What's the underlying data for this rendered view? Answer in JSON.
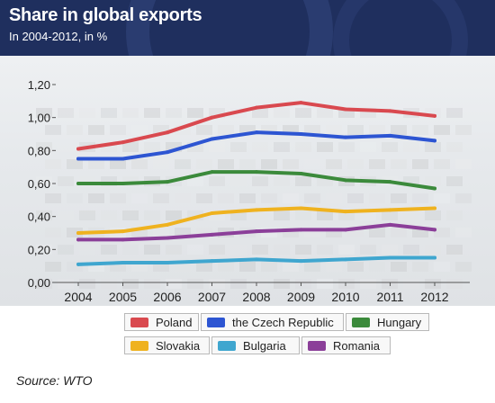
{
  "header": {
    "title": "Share in global exports",
    "subtitle": "In 2004-2012, in %"
  },
  "source": "Source: WTO",
  "chart_data": {
    "type": "line",
    "title": "Share in global exports",
    "subtitle": "In 2004-2012, in %",
    "x": [
      "2004",
      "2005",
      "2006",
      "2007",
      "2008",
      "2009",
      "2010",
      "2011",
      "2012"
    ],
    "y_ticks": [
      "0,00",
      "0,20",
      "0,40",
      "0,60",
      "0,80",
      "1,00",
      "1,20"
    ],
    "ylim": [
      0,
      1.2
    ],
    "grid": false,
    "legend_position": "bottom",
    "series": [
      {
        "name": "Poland",
        "color": "#d9494f",
        "values": [
          0.81,
          0.85,
          0.91,
          1.0,
          1.06,
          1.09,
          1.05,
          1.04,
          1.01
        ]
      },
      {
        "name": "the Czech Republic",
        "color": "#2d55d2",
        "values": [
          0.75,
          0.75,
          0.79,
          0.87,
          0.91,
          0.9,
          0.88,
          0.89,
          0.86
        ]
      },
      {
        "name": "Hungary",
        "color": "#3b8a3b",
        "values": [
          0.6,
          0.6,
          0.61,
          0.67,
          0.67,
          0.66,
          0.62,
          0.61,
          0.57
        ]
      },
      {
        "name": "Slovakia",
        "color": "#efb21f",
        "values": [
          0.3,
          0.31,
          0.35,
          0.42,
          0.44,
          0.45,
          0.43,
          0.44,
          0.45
        ]
      },
      {
        "name": "Bulgaria",
        "color": "#3fa6cf",
        "values": [
          0.11,
          0.12,
          0.12,
          0.13,
          0.14,
          0.13,
          0.14,
          0.15,
          0.15
        ]
      },
      {
        "name": "Romania",
        "color": "#8b3f99",
        "values": [
          0.26,
          0.26,
          0.27,
          0.29,
          0.31,
          0.32,
          0.32,
          0.35,
          0.32
        ]
      }
    ]
  }
}
